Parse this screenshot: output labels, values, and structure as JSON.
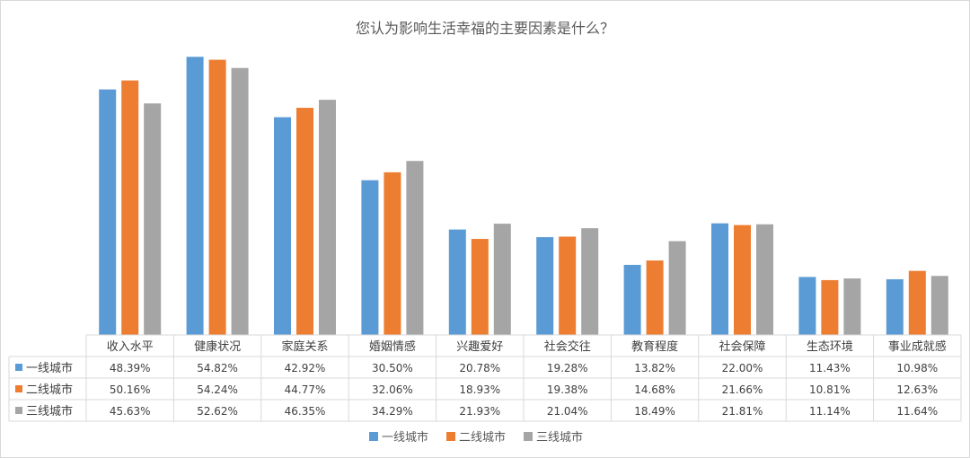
{
  "chart_data": {
    "type": "bar",
    "title": "您认为影响生活幸福的主要因素是什么？",
    "xlabel": "",
    "ylabel": "",
    "ylim": [
      0,
      60
    ],
    "grid": false,
    "legend_position": "bottom",
    "data_table": true,
    "categories": [
      "收入水平",
      "健康状况",
      "家庭关系",
      "婚姻情感",
      "兴趣爱好",
      "社会交往",
      "教育程度",
      "社会保障",
      "生态环境",
      "事业成就感"
    ],
    "series": [
      {
        "name": "一线城市",
        "color": "#5b9bd5",
        "values": [
          48.39,
          54.82,
          42.92,
          30.5,
          20.78,
          19.28,
          13.82,
          22.0,
          11.43,
          10.98
        ],
        "labels": [
          "48.39%",
          "54.82%",
          "42.92%",
          "30.50%",
          "20.78%",
          "19.28%",
          "13.82%",
          "22.00%",
          "11.43%",
          "10.98%"
        ]
      },
      {
        "name": "二线城市",
        "color": "#ed7d31",
        "values": [
          50.16,
          54.24,
          44.77,
          32.06,
          18.93,
          19.38,
          14.68,
          21.66,
          10.81,
          12.63
        ],
        "labels": [
          "50.16%",
          "54.24%",
          "44.77%",
          "32.06%",
          "18.93%",
          "19.38%",
          "14.68%",
          "21.66%",
          "10.81%",
          "12.63%"
        ]
      },
      {
        "name": "三线城市",
        "color": "#a5a5a5",
        "values": [
          45.63,
          52.62,
          46.35,
          34.29,
          21.93,
          21.04,
          18.49,
          21.81,
          11.14,
          11.64
        ],
        "labels": [
          "45.63%",
          "52.62%",
          "46.35%",
          "34.29%",
          "21.93%",
          "21.04%",
          "18.49%",
          "21.81%",
          "11.14%",
          "11.64%"
        ]
      }
    ]
  }
}
